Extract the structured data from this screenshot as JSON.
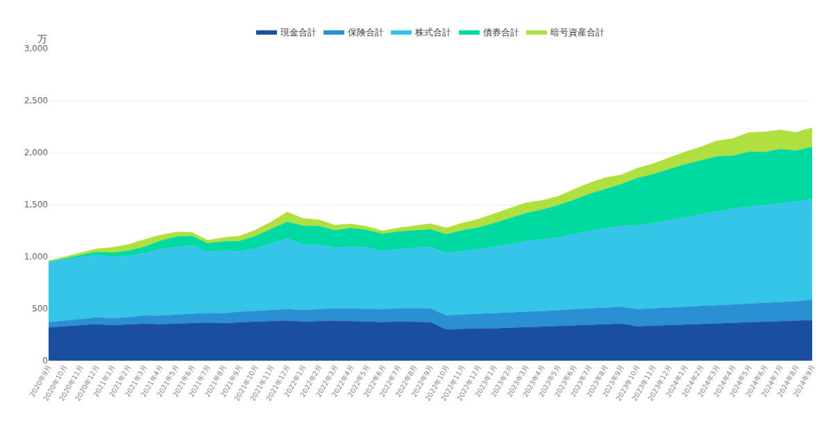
{
  "chart_data": {
    "type": "area",
    "stacked": true,
    "ylabel": "万",
    "grid": true,
    "legend": "top",
    "ylim": [
      0,
      3000
    ],
    "yticks": [
      0,
      500,
      {
        "value": 1000,
        "label": "1,000"
      },
      {
        "value": 1500,
        "label": "1,500"
      },
      {
        "value": 2000,
        "label": "2,000"
      },
      {
        "value": 2500,
        "label": "2,500"
      },
      {
        "value": 3000,
        "label": "3,000"
      }
    ],
    "categories": [
      "2020年9月",
      "2020年10月",
      "2020年11月",
      "2020年12月",
      "2021年1月",
      "2021年2月",
      "2021年3月",
      "2021年4月",
      "2021年5月",
      "2021年6月",
      "2021年7月",
      "2021年8月",
      "2021年9月",
      "2021年10月",
      "2021年11月",
      "2021年12月",
      "2022年1月",
      "2022年2月",
      "2022年3月",
      "2022年4月",
      "2022年5月",
      "2022年6月",
      "2022年7月",
      "2022年8月",
      "2022年9月",
      "2022年10月",
      "2022年11月",
      "2022年12月",
      "2023年1月",
      "2023年2月",
      "2023年3月",
      "2023年4月",
      "2023年5月",
      "2023年6月",
      "2023年7月",
      "2023年8月",
      "2023年9月",
      "2023年10月",
      "2023年11月",
      "2023年12月",
      "2024年1月",
      "2024年2月",
      "2024年3月",
      "2024年4月",
      "2024年5月",
      "2024年6月",
      "2024年7月",
      "2024年8月",
      "2024年9月"
    ],
    "series": [
      {
        "name": "現金合計",
        "color": "#1a4fa0",
        "values": [
          320,
          330,
          340,
          350,
          340,
          345,
          355,
          350,
          355,
          360,
          365,
          360,
          370,
          375,
          380,
          385,
          375,
          380,
          385,
          380,
          375,
          370,
          375,
          375,
          370,
          300,
          305,
          310,
          310,
          315,
          320,
          325,
          330,
          340,
          345,
          350,
          355,
          330,
          335,
          340,
          345,
          350,
          355,
          360,
          365,
          370,
          375,
          380,
          390
        ]
      },
      {
        "name": "保険合計",
        "color": "#2b8fd4",
        "values": [
          50,
          55,
          60,
          65,
          68,
          72,
          78,
          82,
          87,
          90,
          93,
          96,
          100,
          103,
          107,
          110,
          112,
          115,
          118,
          120,
          122,
          125,
          127,
          130,
          132,
          135,
          138,
          140,
          142,
          145,
          148,
          150,
          153,
          155,
          158,
          160,
          162,
          165,
          168,
          170,
          172,
          175,
          178,
          180,
          182,
          185,
          188,
          190,
          195
        ]
      },
      {
        "name": "株式合計",
        "color": "#35c5e8",
        "values": [
          580,
          590,
          595,
          600,
          590,
          590,
          600,
          640,
          650,
          660,
          590,
          600,
          580,
          600,
          640,
          680,
          630,
          620,
          580,
          600,
          590,
          560,
          570,
          580,
          590,
          600,
          610,
          620,
          640,
          660,
          680,
          690,
          700,
          720,
          740,
          760,
          780,
          800,
          820,
          840,
          860,
          880,
          900,
          920,
          930,
          940,
          950,
          960,
          970
        ]
      },
      {
        "name": "債券合計",
        "color": "#00d9a0",
        "values": [
          0,
          10,
          20,
          30,
          40,
          50,
          60,
          80,
          100,
          90,
          80,
          90,
          100,
          120,
          140,
          160,
          180,
          180,
          170,
          175,
          170,
          165,
          170,
          165,
          170,
          180,
          200,
          210,
          230,
          250,
          270,
          285,
          310,
          330,
          360,
          380,
          400,
          460,
          470,
          490,
          510,
          520,
          530,
          510,
          530,
          510,
          520,
          490,
          500
        ]
      },
      {
        "name": "暗号資産合計",
        "color": "#b0e040",
        "values": [
          10,
          15,
          20,
          30,
          50,
          60,
          70,
          55,
          45,
          35,
          30,
          38,
          48,
          58,
          68,
          95,
          70,
          60,
          50,
          40,
          35,
          28,
          35,
          45,
          55,
          62,
          70,
          80,
          90,
          95,
          100,
          90,
          85,
          100,
          105,
          110,
          90,
          95,
          100,
          110,
          120,
          130,
          150,
          165,
          185,
          195,
          185,
          175,
          185
        ]
      }
    ]
  }
}
